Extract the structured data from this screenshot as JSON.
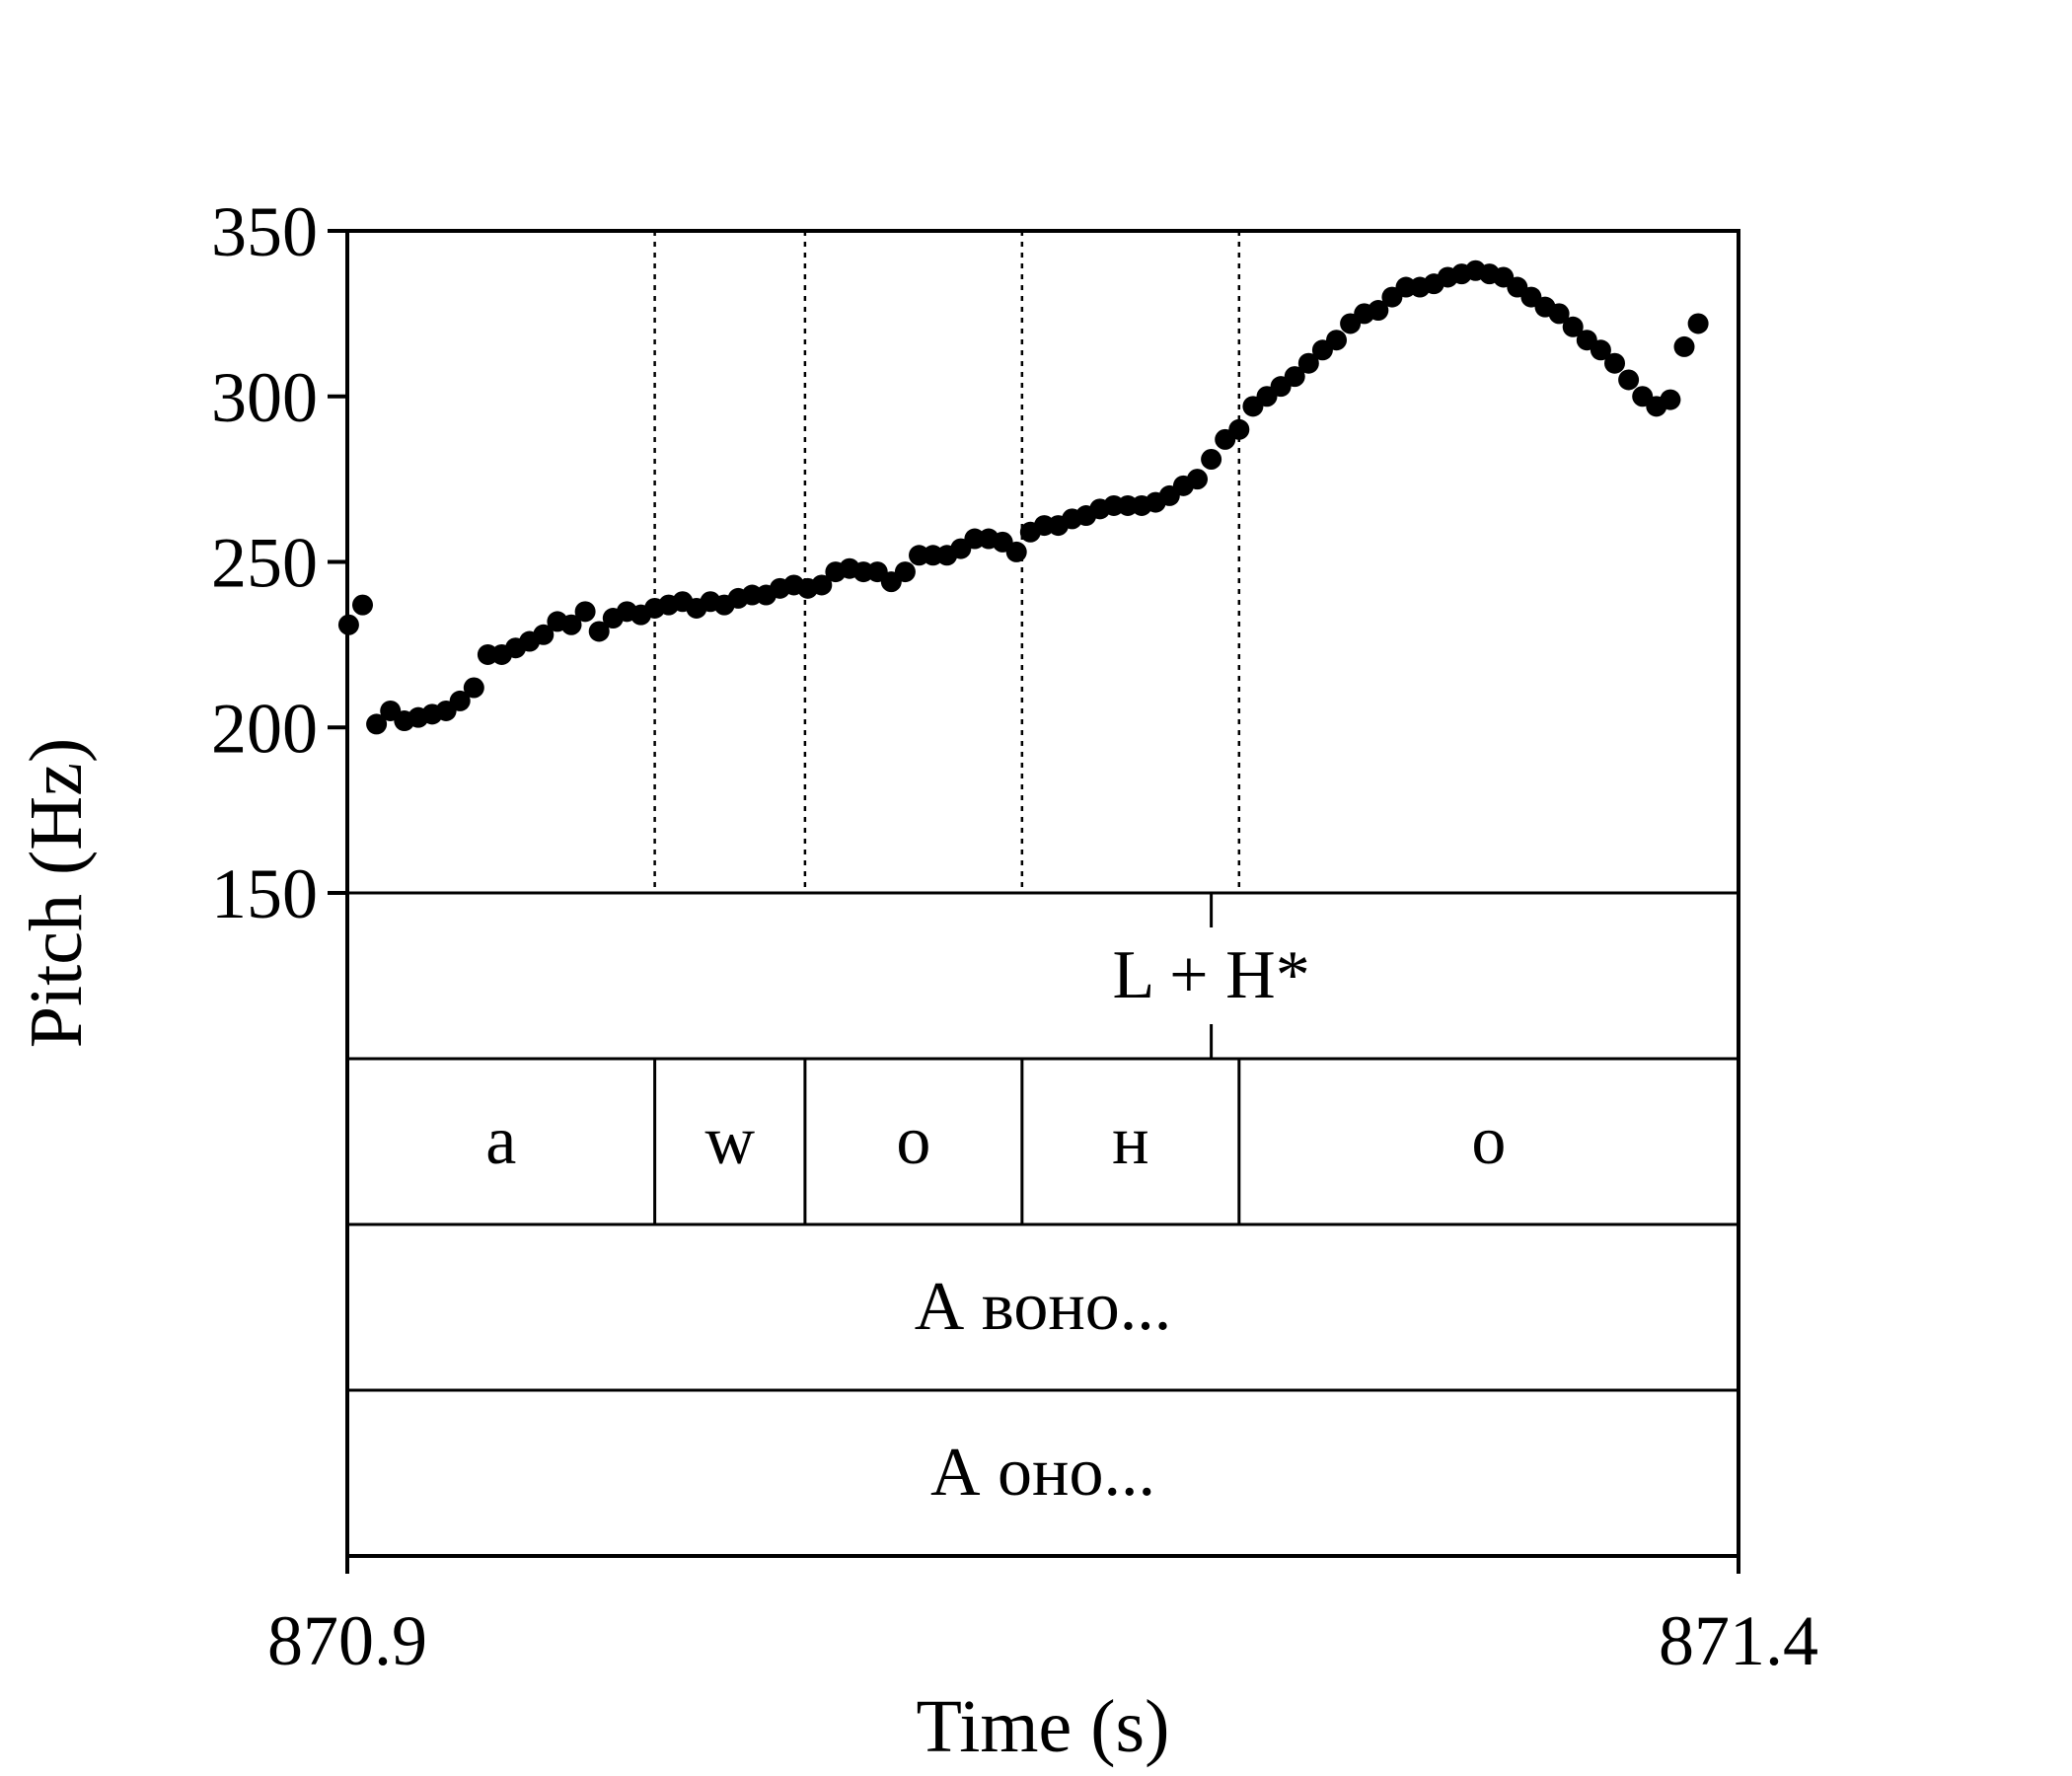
{
  "chart_data": {
    "type": "scatter",
    "xlabel": "Time (s)",
    "ylabel": "Pitch (Hz)",
    "xlim": [
      870.9,
      871.4
    ],
    "ylim": [
      150,
      350
    ],
    "x_ticks": [
      "870.9",
      "871.4"
    ],
    "y_ticks": [
      "150",
      "200",
      "250",
      "300",
      "350"
    ],
    "color": "#000000",
    "series": [
      {
        "points": [
          [
            870.9005,
            231
          ],
          [
            870.9055,
            237
          ],
          [
            870.9105,
            201
          ],
          [
            870.9155,
            205
          ],
          [
            870.9205,
            202
          ],
          [
            870.9255,
            203
          ],
          [
            870.9305,
            204
          ],
          [
            870.9355,
            205
          ],
          [
            870.9405,
            208
          ],
          [
            870.9455,
            212
          ],
          [
            870.9505,
            222
          ],
          [
            870.9555,
            222
          ],
          [
            870.9605,
            224
          ],
          [
            870.9655,
            226
          ],
          [
            870.9705,
            228
          ],
          [
            870.9755,
            232
          ],
          [
            870.9805,
            231
          ],
          [
            870.9855,
            235
          ],
          [
            870.9905,
            229
          ],
          [
            870.9955,
            233
          ],
          [
            871.0005,
            235
          ],
          [
            871.0055,
            234
          ],
          [
            871.0105,
            236
          ],
          [
            871.0155,
            237
          ],
          [
            871.0205,
            238
          ],
          [
            871.0255,
            236
          ],
          [
            871.0305,
            238
          ],
          [
            871.0355,
            237
          ],
          [
            871.0405,
            239
          ],
          [
            871.0455,
            240
          ],
          [
            871.0505,
            240
          ],
          [
            871.0555,
            242
          ],
          [
            871.0605,
            243
          ],
          [
            871.0655,
            242
          ],
          [
            871.0705,
            243
          ],
          [
            871.0755,
            247
          ],
          [
            871.0805,
            248
          ],
          [
            871.0855,
            247
          ],
          [
            871.0905,
            247
          ],
          [
            871.0955,
            244
          ],
          [
            871.1005,
            247
          ],
          [
            871.1055,
            252
          ],
          [
            871.1105,
            252
          ],
          [
            871.1155,
            252
          ],
          [
            871.1205,
            254
          ],
          [
            871.1255,
            257
          ],
          [
            871.1305,
            257
          ],
          [
            871.1355,
            256
          ],
          [
            871.1405,
            253
          ],
          [
            871.1455,
            259
          ],
          [
            871.1505,
            261
          ],
          [
            871.1555,
            261
          ],
          [
            871.1605,
            263
          ],
          [
            871.1655,
            264
          ],
          [
            871.1705,
            266
          ],
          [
            871.1755,
            267
          ],
          [
            871.1805,
            267
          ],
          [
            871.1855,
            267
          ],
          [
            871.1905,
            268
          ],
          [
            871.1955,
            270
          ],
          [
            871.2005,
            273
          ],
          [
            871.2055,
            275
          ],
          [
            871.2105,
            281
          ],
          [
            871.2155,
            287
          ],
          [
            871.2205,
            290
          ],
          [
            871.2255,
            297
          ],
          [
            871.2305,
            300
          ],
          [
            871.2355,
            303
          ],
          [
            871.2405,
            306
          ],
          [
            871.2455,
            310
          ],
          [
            871.2505,
            314
          ],
          [
            871.2555,
            317
          ],
          [
            871.2605,
            322
          ],
          [
            871.2655,
            325
          ],
          [
            871.2705,
            326
          ],
          [
            871.2755,
            330
          ],
          [
            871.2805,
            333
          ],
          [
            871.2855,
            333
          ],
          [
            871.2905,
            334
          ],
          [
            871.2955,
            336
          ],
          [
            871.3005,
            337
          ],
          [
            871.3055,
            338
          ],
          [
            871.3105,
            337
          ],
          [
            871.3155,
            336
          ],
          [
            871.3205,
            333
          ],
          [
            871.3255,
            330
          ],
          [
            871.3305,
            327
          ],
          [
            871.3355,
            325
          ],
          [
            871.3405,
            321
          ],
          [
            871.3455,
            317
          ],
          [
            871.3505,
            314
          ],
          [
            871.3555,
            310
          ],
          [
            871.3605,
            305
          ],
          [
            871.3655,
            300
          ],
          [
            871.3705,
            297
          ],
          [
            871.3755,
            299
          ],
          [
            871.3805,
            315
          ],
          [
            871.3855,
            322
          ]
        ]
      }
    ],
    "tiers": [
      {
        "intervals": [
          {
            "start": 870.9,
            "end": 871.2105,
            "label": ""
          },
          {
            "start": 871.2105,
            "end": 871.4,
            "label": "L + H*"
          }
        ]
      },
      {
        "intervals": [
          {
            "start": 870.9,
            "end": 871.0105,
            "label": "a"
          },
          {
            "start": 871.0105,
            "end": 871.0645,
            "label": "w"
          },
          {
            "start": 871.0645,
            "end": 871.1425,
            "label": "o"
          },
          {
            "start": 871.1425,
            "end": 871.2205,
            "label": "н"
          },
          {
            "start": 871.2205,
            "end": 871.4,
            "label": "o"
          }
        ]
      },
      {
        "intervals": [
          {
            "start": 870.9,
            "end": 871.4,
            "label": "А воно..."
          }
        ]
      },
      {
        "intervals": [
          {
            "start": 870.9,
            "end": 871.4,
            "label": "А оно..."
          }
        ]
      }
    ],
    "boundaries": [
      871.0105,
      871.0645,
      871.1425,
      871.2205
    ]
  }
}
